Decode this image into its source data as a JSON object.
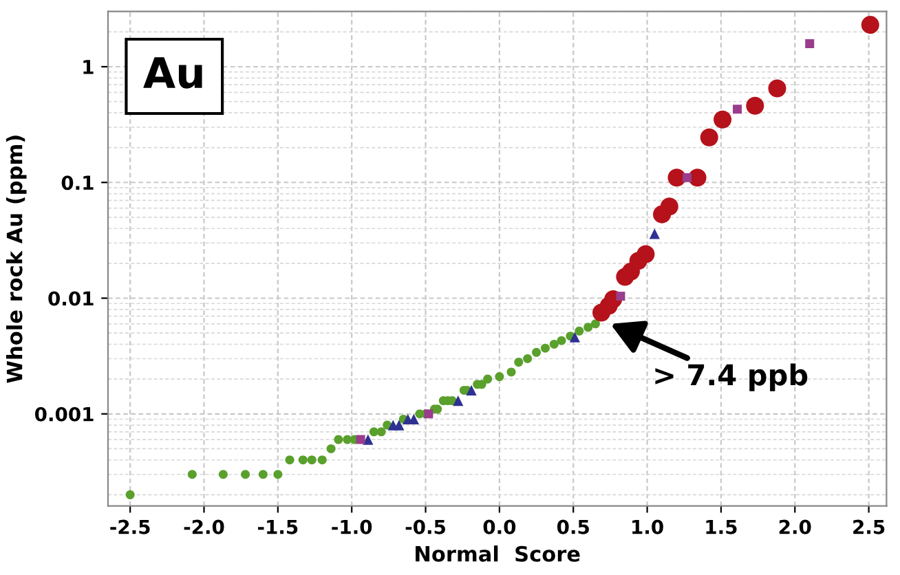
{
  "chart_data": {
    "type": "scatter",
    "xlabel": "Normal  Score",
    "ylabel": "Whole rock Au (ppm)",
    "log": "y",
    "grid": true,
    "xlim": [
      -2.65,
      2.62
    ],
    "ylim": [
      0.00016,
      3.0
    ],
    "xticks": [
      {
        "value": -2.5,
        "label": "-2.5"
      },
      {
        "value": -2.0,
        "label": "-2.0"
      },
      {
        "value": -1.5,
        "label": "-1.5"
      },
      {
        "value": -1.0,
        "label": "-1.0"
      },
      {
        "value": -0.5,
        "label": "-0.5"
      },
      {
        "value": 0.0,
        "label": "0.0"
      },
      {
        "value": 0.5,
        "label": "0.5"
      },
      {
        "value": 1.0,
        "label": "1.0"
      },
      {
        "value": 1.5,
        "label": "1.5"
      },
      {
        "value": 2.0,
        "label": "2.0"
      },
      {
        "value": 2.5,
        "label": "2.5"
      }
    ],
    "yticks": [
      {
        "value": 0.001,
        "label": "0.001"
      },
      {
        "value": 0.01,
        "label": "0.01"
      },
      {
        "value": 0.1,
        "label": "0.1"
      },
      {
        "value": 1,
        "label": "1"
      }
    ],
    "annotations": [
      "Au",
      {
        "text": "> 7.4 ppb",
        "x": 0.75,
        "y": 0.006
      }
    ],
    "series": [
      {
        "color": "#5aa02c",
        "marker": "circle",
        "x": [
          -2.5,
          -2.08,
          -1.87,
          -1.72,
          -1.6,
          -1.5,
          -1.42,
          -1.33,
          -1.27,
          -1.2,
          -1.14,
          -1.09,
          -1.03,
          -0.98,
          -0.85,
          -0.8,
          -0.76,
          -0.65,
          -0.54,
          -0.5,
          -0.44,
          -0.42,
          -0.38,
          -0.35,
          -0.32,
          -0.24,
          -0.22,
          -0.15,
          -0.12,
          -0.08,
          0.0,
          0.08,
          0.13,
          0.19,
          0.25,
          0.31,
          0.37,
          0.42,
          0.48,
          0.54,
          0.6,
          0.65
        ],
        "values": [
          0.0002,
          0.0003,
          0.0003,
          0.0003,
          0.0003,
          0.0003,
          0.0004,
          0.0004,
          0.0004,
          0.0004,
          0.0005,
          0.0006,
          0.0006,
          0.0006,
          0.0007,
          0.0007,
          0.0008,
          0.0009,
          0.001,
          0.001,
          0.0011,
          0.0011,
          0.0013,
          0.0013,
          0.0013,
          0.0016,
          0.0016,
          0.0018,
          0.0018,
          0.002,
          0.0021,
          0.0023,
          0.0028,
          0.003,
          0.0034,
          0.0037,
          0.004,
          0.0043,
          0.0047,
          0.0052,
          0.0056,
          0.006
        ]
      },
      {
        "color": "#2e3192",
        "marker": "triangle",
        "x": [
          -0.89,
          -0.72,
          -0.68,
          -0.62,
          -0.58,
          -0.28,
          -0.19,
          0.51,
          1.05
        ],
        "values": [
          0.0006,
          0.0008,
          0.0008,
          0.0009,
          0.0009,
          0.0013,
          0.0016,
          0.0046,
          0.036
        ]
      },
      {
        "color": "#993d8c",
        "marker": "square",
        "x": [
          -0.94,
          -0.48,
          0.82,
          1.27,
          1.61,
          2.1
        ],
        "values": [
          0.0006,
          0.001,
          0.0104,
          0.11,
          0.43,
          1.58
        ]
      },
      {
        "color": "#b5121b",
        "marker": "circle",
        "x": [
          0.69,
          0.74,
          0.77,
          0.85,
          0.89,
          0.94,
          0.99,
          1.1,
          1.15,
          1.2,
          1.34,
          1.42,
          1.51,
          1.73,
          1.88,
          2.51
        ],
        "values": [
          0.0075,
          0.0086,
          0.0098,
          0.0153,
          0.017,
          0.021,
          0.024,
          0.053,
          0.062,
          0.11,
          0.11,
          0.245,
          0.35,
          0.46,
          0.65,
          2.3
        ]
      }
    ]
  }
}
